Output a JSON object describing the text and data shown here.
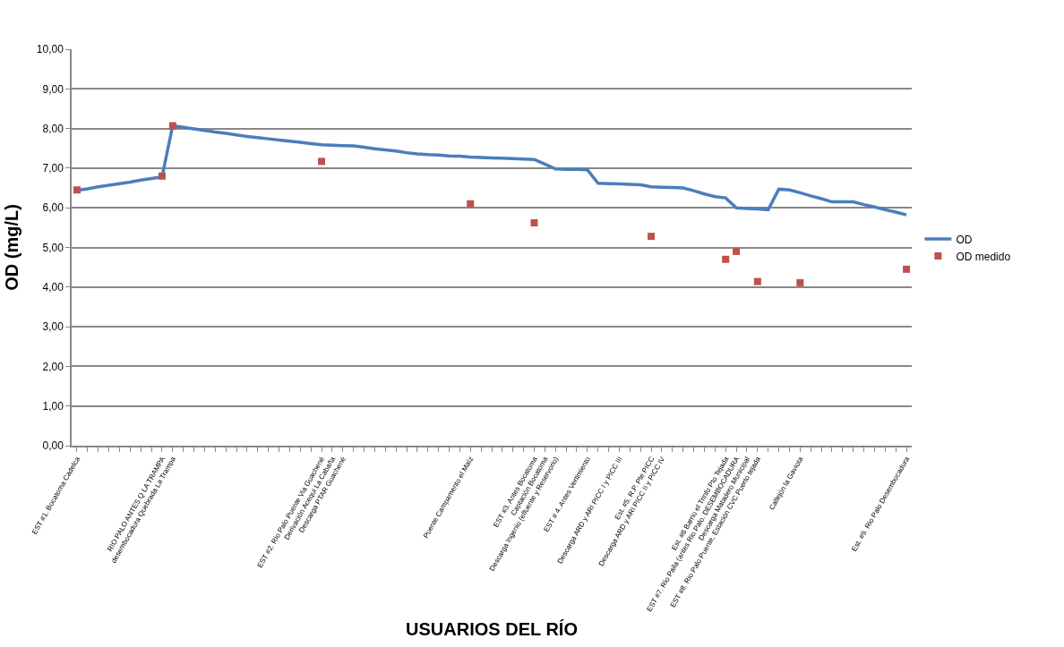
{
  "chart_data": {
    "type": "line",
    "xlabel": "USUARIOS DEL RÍO",
    "ylabel": "OD (mg/L)",
    "categories": [
      "EST #1. Bocatoma Cadelca",
      null,
      null,
      null,
      null,
      null,
      null,
      null,
      "RIO PALO ANTES Q LA TRAMPA",
      "desembocadura Quebrada La Trampa",
      null,
      null,
      null,
      null,
      null,
      null,
      null,
      null,
      null,
      null,
      null,
      null,
      null,
      "EST #2. Rio Palo Puente Via Guachené",
      "Derivación Acequi La Cabaña",
      "Descarga PTAR Guachené",
      null,
      null,
      null,
      null,
      null,
      null,
      null,
      null,
      null,
      null,
      null,
      "Puente Campamento el Maíz",
      null,
      null,
      null,
      null,
      null,
      "EST #3. Antes Bocatoma",
      "Captación Bocatoma",
      "Descarga Ingenio (efluente y Reservorio)",
      null,
      null,
      "EST # 4. Antes Vertimiento",
      null,
      null,
      "Descarga ARD y ARI PICC I y PICC III",
      null,
      null,
      "Est. #5. R.P. Pte PICC",
      "Descarga ARD y ARI PICC II y PICC IV",
      null,
      null,
      null,
      null,
      null,
      "Est. #6 Barrio el Trinfo Pto Tejada",
      "EST #7. Rio Paila (antes Rio Palo. DESEMBOCADURA",
      "Descarga Matadero Municipal",
      "EST #8. Rio Palo Puente, Estación CVC Puerto tejada",
      null,
      null,
      null,
      "Callejón la Gaviota",
      null,
      null,
      null,
      null,
      null,
      null,
      null,
      null,
      null,
      "Est. #9. Rio Palo Desembocadura"
    ],
    "series": [
      {
        "name": "OD",
        "color": "#4a7ebb",
        "marker": "none",
        "values": [
          6.44,
          6.48,
          6.53,
          6.57,
          6.61,
          6.65,
          6.7,
          6.74,
          6.78,
          8.07,
          8.03,
          7.99,
          7.95,
          7.91,
          7.88,
          7.84,
          7.8,
          7.77,
          7.74,
          7.71,
          7.68,
          7.65,
          7.62,
          7.59,
          7.58,
          7.57,
          7.56,
          7.53,
          7.49,
          7.46,
          7.43,
          7.39,
          7.36,
          7.34,
          7.33,
          7.31,
          7.3,
          7.28,
          7.27,
          7.26,
          7.25,
          7.24,
          7.23,
          7.22,
          7.1,
          6.98,
          6.97,
          6.97,
          6.96,
          6.62,
          6.61,
          6.6,
          6.59,
          6.58,
          6.53,
          6.52,
          6.51,
          6.5,
          6.43,
          6.35,
          6.28,
          6.25,
          6.0,
          5.98,
          5.97,
          5.95,
          6.47,
          6.45,
          6.38,
          6.3,
          6.23,
          6.15,
          6.15,
          6.15,
          6.08,
          6.02,
          5.95,
          5.89,
          5.82
        ]
      },
      {
        "name": "OD medido",
        "type": "scatter",
        "color": "#c0504d",
        "marker": "square",
        "values": [
          6.45,
          null,
          null,
          null,
          null,
          null,
          null,
          null,
          6.8,
          8.07,
          null,
          null,
          null,
          null,
          null,
          null,
          null,
          null,
          null,
          null,
          null,
          null,
          null,
          7.17,
          null,
          null,
          null,
          null,
          null,
          null,
          null,
          null,
          null,
          null,
          null,
          null,
          null,
          6.1,
          null,
          null,
          null,
          null,
          null,
          5.62,
          null,
          null,
          null,
          null,
          null,
          null,
          null,
          null,
          null,
          null,
          5.28,
          null,
          null,
          null,
          null,
          null,
          null,
          4.7,
          4.9,
          null,
          4.14,
          null,
          null,
          null,
          4.11,
          null,
          null,
          null,
          null,
          null,
          null,
          null,
          null,
          null,
          4.45
        ]
      }
    ],
    "ylim": [
      0,
      10
    ],
    "yticks": [
      {
        "value": 0,
        "label": "0,00"
      },
      {
        "value": 1,
        "label": "1,00"
      },
      {
        "value": 2,
        "label": "2,00"
      },
      {
        "value": 3,
        "label": "3,00"
      },
      {
        "value": 4,
        "label": "4,00"
      },
      {
        "value": 5,
        "label": "5,00"
      },
      {
        "value": 6,
        "label": "6,00"
      },
      {
        "value": 7,
        "label": "7,00"
      },
      {
        "value": 8,
        "label": "8,00"
      },
      {
        "value": 9,
        "label": "9,00"
      },
      {
        "value": 10,
        "label": "10,00"
      }
    ],
    "grid": "y",
    "legend": "right",
    "line_style": "solid"
  }
}
